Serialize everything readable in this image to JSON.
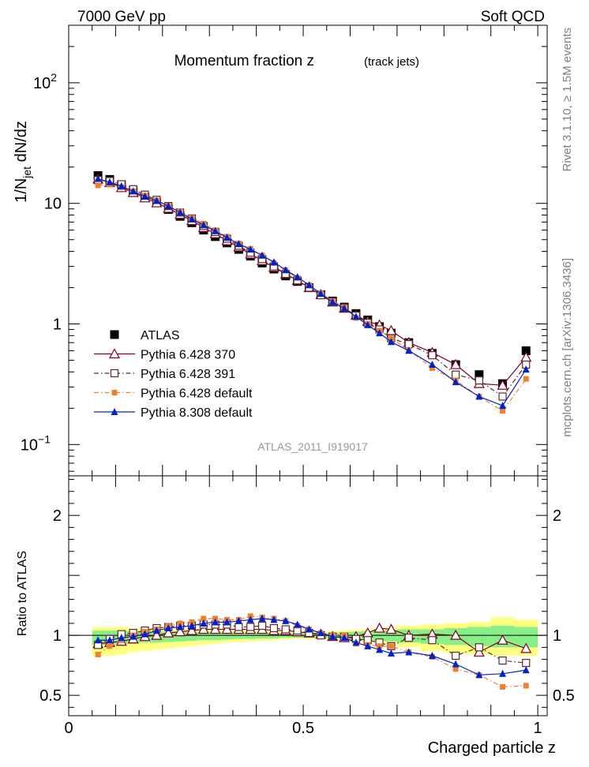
{
  "header": {
    "left": "7000 GeV pp",
    "right": "Soft QCD"
  },
  "side": {
    "rivet": "Rivet 3.1.10, ≥ 1.5M events",
    "mcplots": "mcplots.cern.ch [arXiv:1306.3436]"
  },
  "title_main": "Momentum fraction z",
  "title_sub": "(track jets)",
  "analysis_label": "ATLAS_2011_I919017",
  "colors": {
    "atlas": "#000000",
    "p370": "#800020",
    "p391": "#5a2a2a",
    "pdef": "#f08030",
    "p8": "#0022cc",
    "band_yellow": "#ffff80",
    "band_green": "#88ee88"
  },
  "chart_data": [
    {
      "type": "scatter",
      "panel": "main",
      "ylabel_main": "1/N",
      "ylabel_sub": "jet",
      "ylabel_tail": " dN/dz",
      "yscale": "log",
      "ylim": [
        0.055,
        300
      ],
      "xlim": [
        0,
        1.02
      ],
      "ytick_labels": [
        {
          "value": 0.1,
          "base": "10",
          "exp": "−1"
        },
        {
          "value": 1,
          "base": "1",
          "exp": ""
        },
        {
          "value": 10,
          "base": "10",
          "exp": ""
        },
        {
          "value": 100,
          "base": "10",
          "exp": "2"
        }
      ],
      "x": [
        0.0625,
        0.0875,
        0.1125,
        0.1375,
        0.1625,
        0.1875,
        0.2125,
        0.2375,
        0.2625,
        0.2875,
        0.3125,
        0.3375,
        0.3625,
        0.3875,
        0.4125,
        0.4375,
        0.4625,
        0.4875,
        0.5125,
        0.5375,
        0.5625,
        0.5875,
        0.6125,
        0.6375,
        0.6625,
        0.6875,
        0.725,
        0.775,
        0.825,
        0.875,
        0.925,
        0.975
      ],
      "series": [
        {
          "name": "ATLAS",
          "key": "atlas",
          "marker": "square-filled",
          "line": "none",
          "values": [
            17,
            15.8,
            14.3,
            12.7,
            11.3,
            10.1,
            8.9,
            7.8,
            6.9,
            6.0,
            5.3,
            4.7,
            4.15,
            3.65,
            3.2,
            2.85,
            2.5,
            2.25,
            2.0,
            1.75,
            1.55,
            1.38,
            1.22,
            1.08,
            0.95,
            0.84,
            0.7,
            0.57,
            0.46,
            0.38,
            0.32,
            0.6
          ]
        },
        {
          "name": "Pythia 6.428 370",
          "key": "p370",
          "marker": "triangle-open",
          "line": "solid",
          "values": [
            15.9,
            14.9,
            13.5,
            12.3,
            11.1,
            10.1,
            9.1,
            8.1,
            7.2,
            6.3,
            5.6,
            4.9,
            4.35,
            3.8,
            3.35,
            2.95,
            2.6,
            2.3,
            2.0,
            1.75,
            1.52,
            1.35,
            1.18,
            1.05,
            0.98,
            0.88,
            0.7,
            0.58,
            0.46,
            0.32,
            0.31,
            0.53
          ]
        },
        {
          "name": "Pythia 6.428 391",
          "key": "p391",
          "marker": "square-open",
          "line": "dashdot",
          "values": [
            15.6,
            15.3,
            14.4,
            13.1,
            11.8,
            10.7,
            9.5,
            8.4,
            7.5,
            6.5,
            5.8,
            5.1,
            4.45,
            3.9,
            3.45,
            3.0,
            2.6,
            2.3,
            2.0,
            1.73,
            1.52,
            1.35,
            1.17,
            1.02,
            0.9,
            0.76,
            0.68,
            0.55,
            0.38,
            0.34,
            0.25,
            0.46
          ]
        },
        {
          "name": "Pythia 6.428 default",
          "key": "pdef",
          "marker": "square-filled-small",
          "line": "dashdot",
          "values": [
            14.1,
            14.3,
            13.6,
            12.6,
            11.6,
            10.6,
            9.6,
            8.6,
            7.6,
            6.8,
            6.0,
            5.3,
            4.65,
            4.2,
            3.7,
            3.2,
            2.8,
            2.4,
            2.1,
            1.8,
            1.55,
            1.38,
            1.12,
            1.0,
            0.88,
            0.76,
            0.61,
            0.43,
            0.34,
            0.25,
            0.19,
            0.35
          ]
        },
        {
          "name": "Pythia 8.308 default",
          "key": "p8",
          "marker": "triangle-filled",
          "line": "solid",
          "values": [
            16.0,
            15.0,
            13.9,
            12.6,
            11.4,
            10.5,
            9.5,
            8.4,
            7.4,
            6.6,
            5.9,
            5.2,
            4.6,
            4.15,
            3.7,
            3.25,
            2.8,
            2.45,
            2.1,
            1.78,
            1.52,
            1.35,
            1.15,
            0.98,
            0.84,
            0.71,
            0.6,
            0.46,
            0.33,
            0.25,
            0.21,
            0.42
          ]
        }
      ]
    },
    {
      "type": "scatter",
      "panel": "ratio",
      "ylabel": "Ratio to ATLAS",
      "ylim": [
        0.33,
        2.33
      ],
      "xlabel": "Charged particle z",
      "xtick_labels": [
        {
          "value": 0,
          "label": "0"
        },
        {
          "value": 0.5,
          "label": "0.5"
        },
        {
          "value": 1,
          "label": "1"
        }
      ],
      "ytick_labels": [
        {
          "value": 0.5,
          "label": "0.5"
        },
        {
          "value": 1,
          "label": "1"
        },
        {
          "value": 2,
          "label": "2"
        }
      ],
      "x": [
        0.0625,
        0.0875,
        0.1125,
        0.1375,
        0.1625,
        0.1875,
        0.2125,
        0.2375,
        0.2625,
        0.2875,
        0.3125,
        0.3375,
        0.3625,
        0.3875,
        0.4125,
        0.4375,
        0.4625,
        0.4875,
        0.5125,
        0.5375,
        0.5625,
        0.5875,
        0.6125,
        0.6375,
        0.6625,
        0.6875,
        0.725,
        0.775,
        0.825,
        0.875,
        0.925,
        0.975
      ],
      "bin_edges": [
        0.05,
        0.075,
        0.1,
        0.125,
        0.15,
        0.175,
        0.2,
        0.225,
        0.25,
        0.275,
        0.3,
        0.325,
        0.35,
        0.375,
        0.4,
        0.425,
        0.45,
        0.475,
        0.5,
        0.525,
        0.55,
        0.575,
        0.6,
        0.625,
        0.65,
        0.675,
        0.7,
        0.75,
        0.8,
        0.85,
        0.9,
        0.95,
        1.0
      ],
      "band_yellow": {
        "lo": [
          0.83,
          0.83,
          0.84,
          0.86,
          0.87,
          0.88,
          0.89,
          0.9,
          0.91,
          0.92,
          0.93,
          0.94,
          0.945,
          0.95,
          0.955,
          0.96,
          0.965,
          0.97,
          0.97,
          0.97,
          0.97,
          0.96,
          0.95,
          0.94,
          0.93,
          0.92,
          0.9,
          0.87,
          0.85,
          0.84,
          0.83,
          0.83
        ],
        "hi": [
          1.07,
          1.07,
          1.07,
          1.06,
          1.06,
          1.06,
          1.055,
          1.05,
          1.05,
          1.045,
          1.045,
          1.04,
          1.04,
          1.04,
          1.035,
          1.035,
          1.03,
          1.03,
          1.03,
          1.03,
          1.035,
          1.04,
          1.045,
          1.05,
          1.06,
          1.07,
          1.08,
          1.09,
          1.1,
          1.11,
          1.15,
          1.13
        ]
      },
      "band_green": {
        "lo": [
          0.92,
          0.92,
          0.93,
          0.93,
          0.94,
          0.94,
          0.945,
          0.95,
          0.955,
          0.96,
          0.96,
          0.965,
          0.97,
          0.97,
          0.975,
          0.975,
          0.98,
          0.98,
          0.98,
          0.98,
          0.975,
          0.97,
          0.965,
          0.96,
          0.955,
          0.95,
          0.94,
          0.93,
          0.92,
          0.91,
          0.9,
          0.9
        ],
        "hi": [
          1.04,
          1.04,
          1.04,
          1.035,
          1.035,
          1.03,
          1.03,
          1.03,
          1.025,
          1.025,
          1.025,
          1.02,
          1.02,
          1.02,
          1.02,
          1.02,
          1.02,
          1.02,
          1.02,
          1.02,
          1.02,
          1.025,
          1.03,
          1.035,
          1.04,
          1.04,
          1.05,
          1.05,
          1.06,
          1.07,
          1.08,
          1.07
        ]
      },
      "series": [
        {
          "name": "Pythia 6.428 370",
          "key": "p370",
          "marker": "triangle-open",
          "line": "solid",
          "values": [
            0.93,
            0.94,
            0.95,
            0.97,
            0.99,
            1.0,
            1.02,
            1.03,
            1.04,
            1.05,
            1.05,
            1.05,
            1.05,
            1.05,
            1.05,
            1.04,
            1.04,
            1.03,
            1.02,
            1.01,
            0.99,
            0.98,
            0.99,
            1.02,
            1.06,
            1.05,
            1.0,
            1.01,
            1.0,
            0.86,
            0.96,
            0.89
          ]
        },
        {
          "name": "Pythia 6.428 391",
          "key": "p391",
          "marker": "square-open",
          "line": "dashdot",
          "values": [
            0.92,
            0.97,
            1.01,
            1.02,
            1.04,
            1.06,
            1.07,
            1.08,
            1.08,
            1.09,
            1.09,
            1.09,
            1.07,
            1.07,
            1.08,
            1.06,
            1.05,
            1.04,
            1.02,
            1.0,
            0.99,
            0.99,
            0.97,
            0.96,
            0.94,
            0.91,
            0.98,
            0.96,
            0.83,
            0.9,
            0.79,
            0.77
          ]
        },
        {
          "name": "Pythia 6.428 default",
          "key": "pdef",
          "marker": "square-filled-small",
          "line": "dashdot",
          "values": [
            0.84,
            0.91,
            0.96,
            1.0,
            1.03,
            1.05,
            1.08,
            1.1,
            1.11,
            1.14,
            1.14,
            1.13,
            1.13,
            1.16,
            1.15,
            1.14,
            1.12,
            1.08,
            1.05,
            1.02,
            1.0,
            1.0,
            0.93,
            0.92,
            0.91,
            0.91,
            0.86,
            0.82,
            0.72,
            0.67,
            0.57,
            0.58
          ]
        },
        {
          "name": "Pythia 8.308 default",
          "key": "p8",
          "marker": "triangle-filled",
          "line": "solid",
          "values": [
            0.96,
            0.96,
            0.98,
            0.99,
            1.01,
            1.04,
            1.06,
            1.07,
            1.08,
            1.1,
            1.11,
            1.11,
            1.12,
            1.13,
            1.14,
            1.13,
            1.12,
            1.09,
            1.05,
            1.02,
            0.99,
            0.98,
            0.94,
            0.91,
            0.88,
            0.85,
            0.86,
            0.83,
            0.76,
            0.67,
            0.68,
            0.71
          ]
        }
      ]
    }
  ]
}
